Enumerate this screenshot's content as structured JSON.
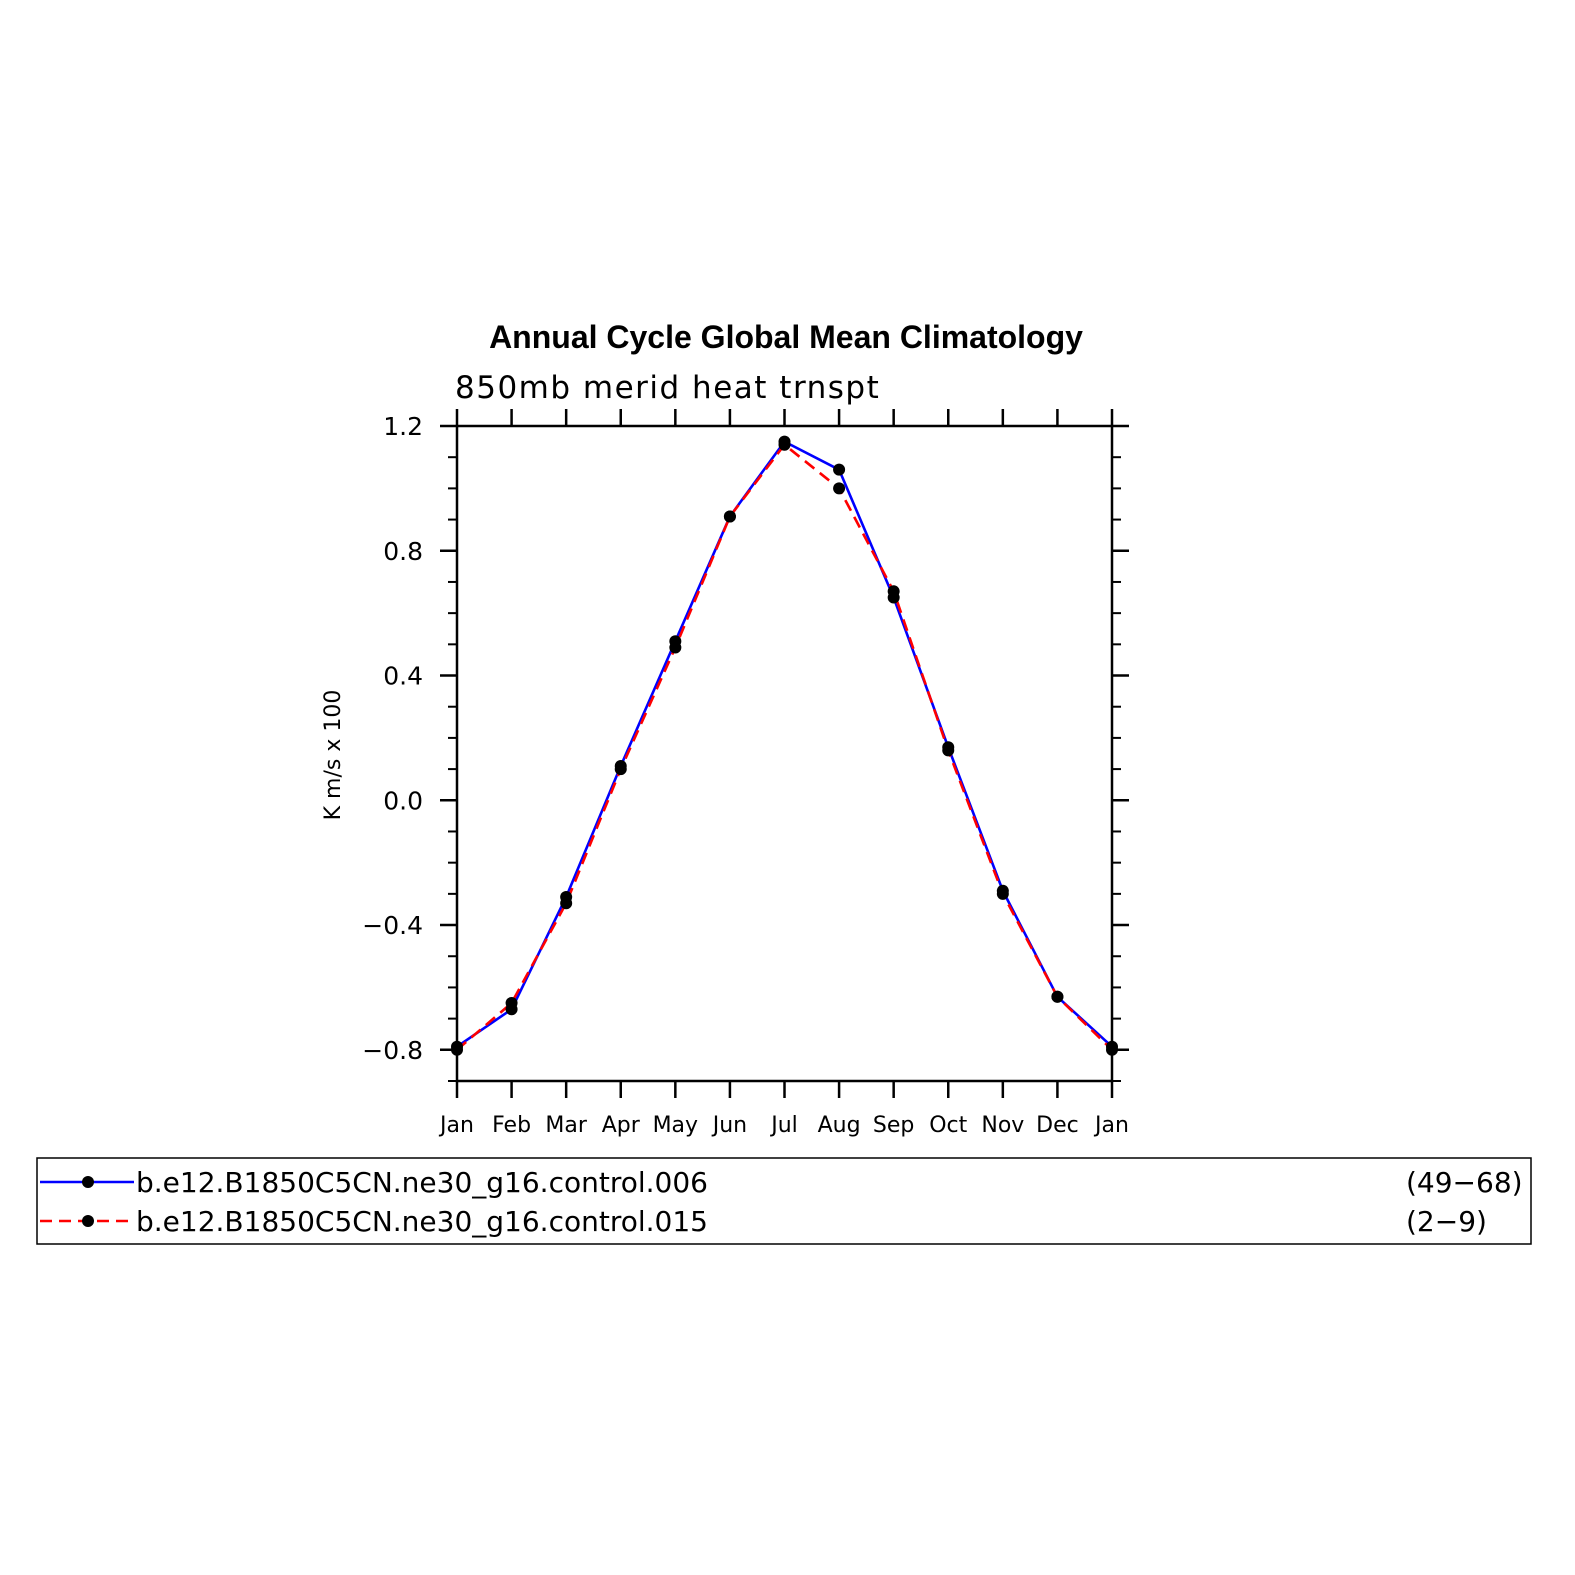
{
  "chart_data": {
    "type": "line",
    "title": "Annual Cycle Global Mean Climatology",
    "subtitle": "850mb merid heat trnspt",
    "xlabel": "",
    "ylabel": "K m/s x 100",
    "categories": [
      "Jan",
      "Feb",
      "Mar",
      "Apr",
      "May",
      "Jun",
      "Jul",
      "Aug",
      "Sep",
      "Oct",
      "Nov",
      "Dec",
      "Jan"
    ],
    "ylim": [
      -0.9,
      1.2
    ],
    "yticks": [
      -0.8,
      -0.4,
      0.0,
      0.4,
      0.8,
      1.2
    ],
    "ytick_labels": [
      "−0.8",
      "−0.4",
      "0.0",
      "0.4",
      "0.8",
      "1.2"
    ],
    "grid": false,
    "legend_placement": "bottom",
    "series": [
      {
        "name": "b.e12.B1850C5CN.ne30_g16.control.006",
        "years": "(49−68)",
        "color": "#0000ff",
        "dash": "solid",
        "marker": "filled-circle",
        "values": [
          -0.79,
          -0.67,
          -0.31,
          0.11,
          0.51,
          0.91,
          1.15,
          1.06,
          0.65,
          0.17,
          -0.29,
          -0.63,
          -0.79
        ]
      },
      {
        "name": "b.e12.B1850C5CN.ne30_g16.control.015",
        "years": "(2−9)",
        "color": "#ff0000",
        "dash": "dashed",
        "marker": "filled-circle",
        "values": [
          -0.8,
          -0.65,
          -0.33,
          0.1,
          0.49,
          0.91,
          1.14,
          1.0,
          0.67,
          0.16,
          -0.3,
          -0.63,
          -0.8
        ]
      }
    ]
  }
}
